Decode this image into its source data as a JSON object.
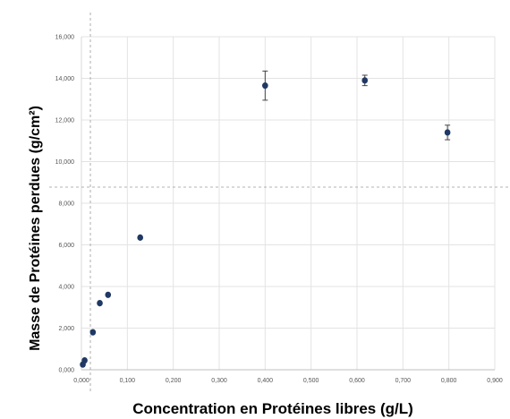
{
  "chart_data": {
    "type": "scatter",
    "title": "",
    "xlabel": "Concentration en Protéines libres (g/L)",
    "ylabel": "Masse de Protéines perdues (g/cm²)",
    "xlim": [
      0,
      0.9
    ],
    "ylim": [
      0,
      16
    ],
    "x_ticks": [
      0,
      0.1,
      0.2,
      0.3,
      0.4,
      0.5,
      0.6,
      0.7,
      0.8,
      0.9
    ],
    "x_tick_labels": [
      "0,000",
      "0,100",
      "0,200",
      "0,300",
      "0,400",
      "0,500",
      "0,600",
      "0,700",
      "0,800",
      "0,900"
    ],
    "y_ticks": [
      0,
      2,
      4,
      6,
      8,
      10,
      12,
      14,
      16
    ],
    "y_tick_labels": [
      "0,000",
      "2,000",
      "4,000",
      "6,000",
      "8,000",
      "10,000",
      "12,000",
      "14,000",
      "16,000"
    ],
    "grid": true,
    "legend": "none",
    "marker_color": "#1f3864",
    "points": [
      {
        "x": 0.003,
        "y": 0.25,
        "err": 0
      },
      {
        "x": 0.007,
        "y": 0.45,
        "err": 0
      },
      {
        "x": 0.025,
        "y": 1.8,
        "err": 0
      },
      {
        "x": 0.04,
        "y": 3.2,
        "err": 0
      },
      {
        "x": 0.058,
        "y": 3.6,
        "err": 0
      },
      {
        "x": 0.128,
        "y": 6.35,
        "err": 0
      },
      {
        "x": 0.4,
        "y": 13.65,
        "err": 0.7
      },
      {
        "x": 0.617,
        "y": 13.9,
        "err": 0.25
      },
      {
        "x": 0.797,
        "y": 11.4,
        "err": 0.35
      }
    ]
  }
}
